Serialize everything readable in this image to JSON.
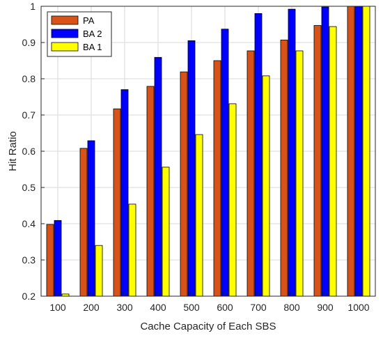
{
  "chart_data": {
    "type": "bar",
    "xlabel": "Cache Capacity of Each SBS",
    "ylabel": "Hit Ratio",
    "ylim": [
      0.2,
      1.0
    ],
    "yticks": [
      "0.2",
      "0.3",
      "0.4",
      "0.5",
      "0.6",
      "0.7",
      "0.8",
      "0.9",
      "1"
    ],
    "categories": [
      "100",
      "200",
      "300",
      "400",
      "500",
      "600",
      "700",
      "800",
      "900",
      "1000"
    ],
    "series": [
      {
        "name": "PA",
        "color": "#D95319",
        "values": [
          0.398,
          0.608,
          0.717,
          0.779,
          0.819,
          0.85,
          0.877,
          0.907,
          0.947,
          1.0
        ]
      },
      {
        "name": "BA 2",
        "color": "#0000FF",
        "values": [
          0.409,
          0.629,
          0.77,
          0.859,
          0.905,
          0.937,
          0.98,
          0.992,
          0.998,
          1.0
        ]
      },
      {
        "name": "BA 1",
        "color": "#FFFF00",
        "values": [
          0.206,
          0.34,
          0.454,
          0.556,
          0.646,
          0.731,
          0.808,
          0.877,
          0.944,
          1.0
        ]
      }
    ],
    "grid": true,
    "legend_position": "top-left"
  }
}
